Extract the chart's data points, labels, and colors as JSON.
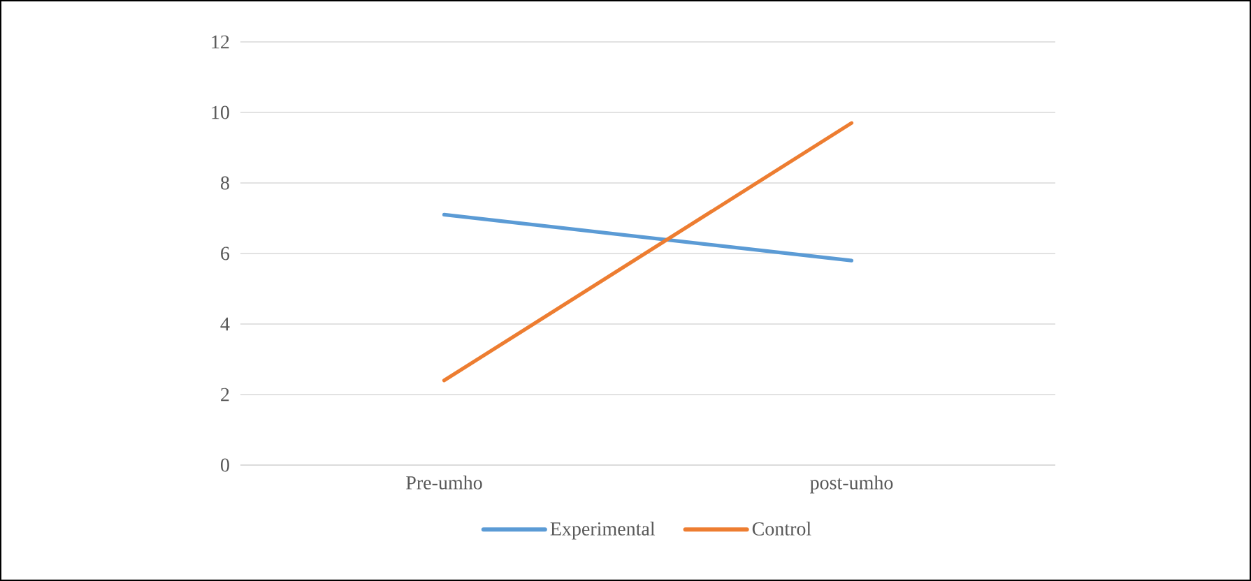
{
  "chart_data": {
    "type": "line",
    "categories": [
      "Pre-umho",
      "post-umho"
    ],
    "series": [
      {
        "name": "Experimental",
        "color": "#5b9bd5",
        "values": [
          7.1,
          5.8
        ]
      },
      {
        "name": "Control",
        "color": "#ed7d31",
        "values": [
          2.4,
          9.7
        ]
      }
    ],
    "ylim": [
      0,
      12
    ],
    "yticks": [
      0,
      2,
      4,
      6,
      8,
      10,
      12
    ],
    "grid": "y",
    "legend": "bottom"
  }
}
